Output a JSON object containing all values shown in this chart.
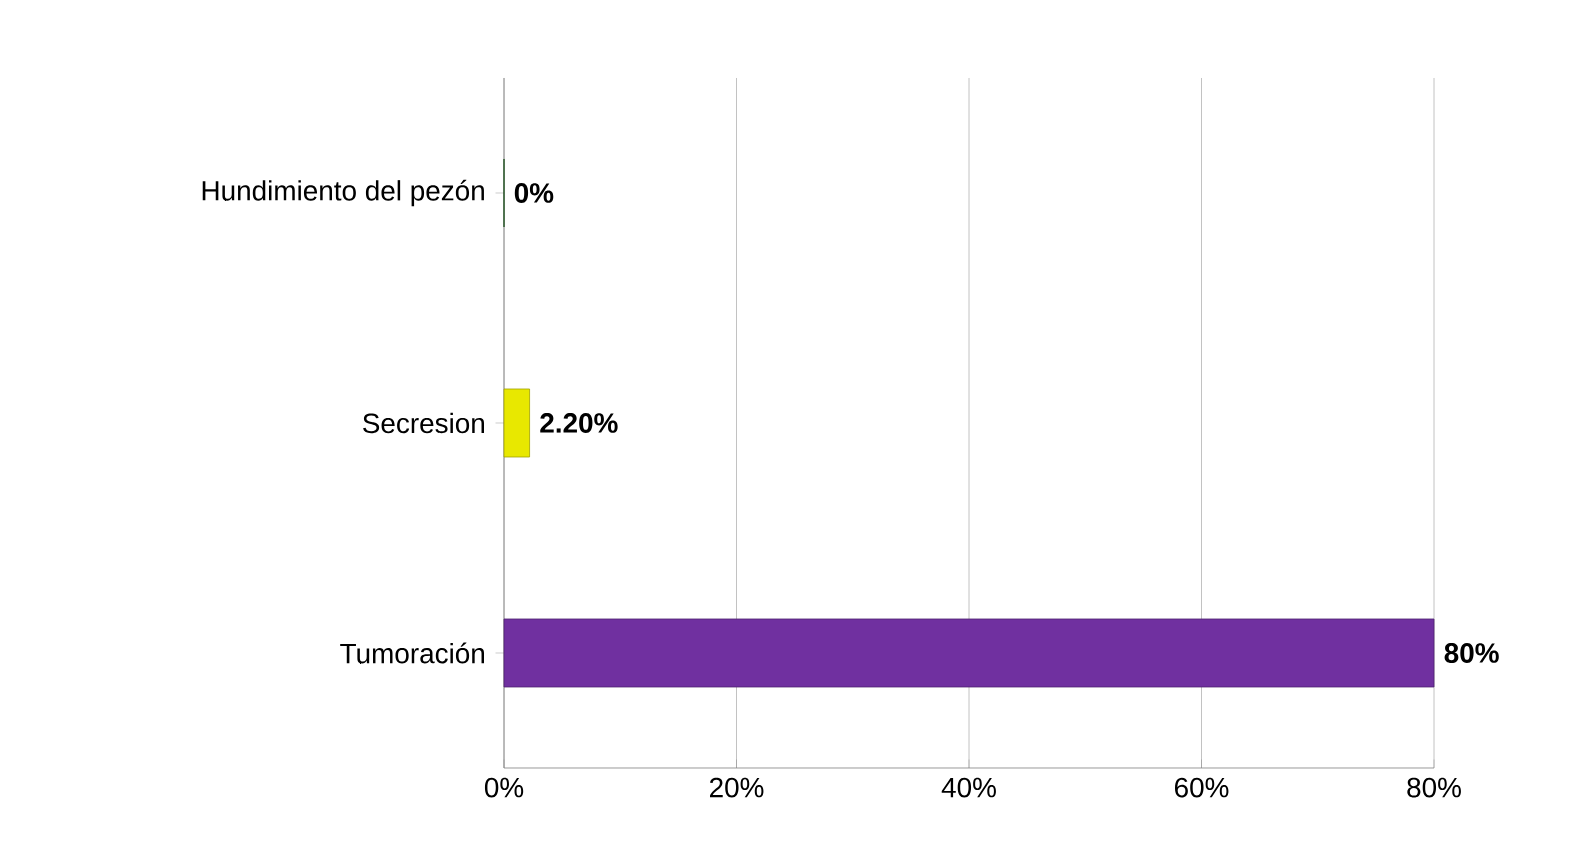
{
  "chart_data": {
    "type": "bar",
    "orientation": "horizontal",
    "categories": [
      "Hundimiento del pezón",
      "Secresion",
      "Tumoración"
    ],
    "values": [
      0,
      2.2,
      80
    ],
    "colors": [
      "#1e6b1e",
      "#e8e800",
      "#7030a0"
    ],
    "value_labels": [
      "0%",
      "2.20%",
      "80%"
    ],
    "xlim": [
      0,
      80
    ],
    "xticks": [
      {
        "value": 0,
        "label": "0%"
      },
      {
        "value": 20,
        "label": "20%"
      },
      {
        "value": 40,
        "label": "40%"
      },
      {
        "value": 60,
        "label": "60%"
      },
      {
        "value": 80,
        "label": "80%"
      }
    ],
    "grid": "x"
  }
}
